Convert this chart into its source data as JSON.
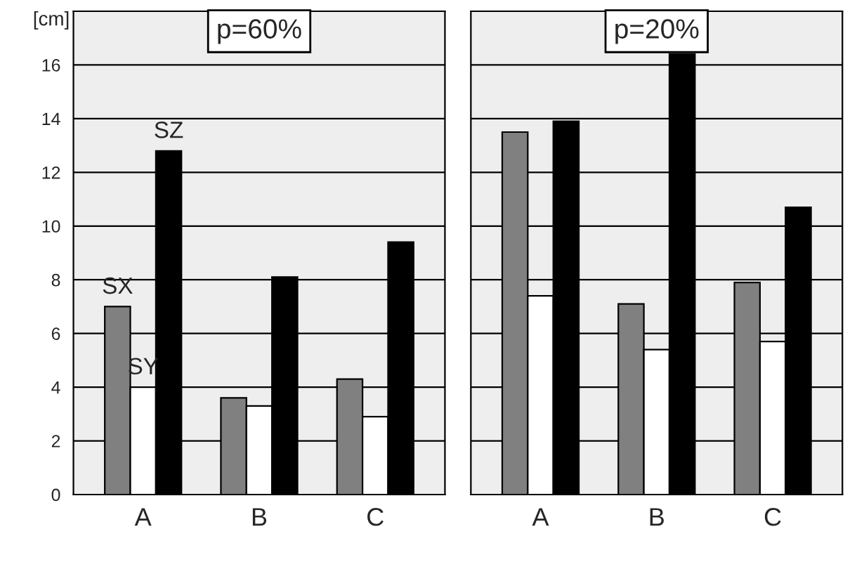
{
  "chart_data": [
    {
      "type": "bar",
      "ylabel": "[cm]",
      "categories": [
        "A",
        "B",
        "C"
      ],
      "ylim": [
        0,
        18
      ],
      "yticks": [
        0,
        2,
        4,
        6,
        8,
        10,
        12,
        14,
        16
      ],
      "grid": "y",
      "annotations": [
        "p=60%"
      ],
      "series": [
        {
          "name": "SX",
          "color": "#808080",
          "values": [
            7.0,
            3.6,
            4.3
          ]
        },
        {
          "name": "SY",
          "color": "#ffffff",
          "values": [
            4.0,
            3.3,
            2.9
          ]
        },
        {
          "name": "SZ",
          "color": "#000000",
          "values": [
            12.8,
            8.1,
            9.4
          ]
        }
      ]
    },
    {
      "type": "bar",
      "categories": [
        "A",
        "B",
        "C"
      ],
      "ylim": [
        0,
        18
      ],
      "yticks": [
        0,
        2,
        4,
        6,
        8,
        10,
        12,
        14,
        16
      ],
      "grid": "y",
      "tick_labels": "x",
      "annotations": [
        "p=20%"
      ],
      "series": [
        {
          "color": "#808080",
          "values": [
            13.5,
            7.1,
            7.9
          ]
        },
        {
          "color": "#ffffff",
          "values": [
            7.4,
            5.4,
            5.7
          ]
        },
        {
          "color": "#000000",
          "values": [
            13.9,
            16.4,
            10.7
          ]
        }
      ]
    }
  ]
}
